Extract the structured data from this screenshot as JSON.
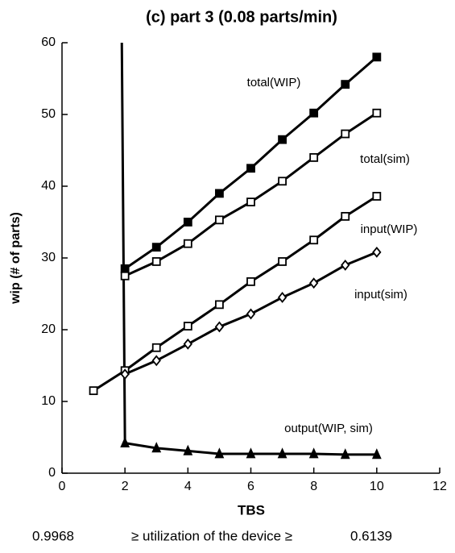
{
  "chart_data": {
    "type": "line",
    "title": "(c) part 3 (0.08 parts/min)",
    "x_label": "TBS",
    "y_label": "wip (# of parts)",
    "xlim": [
      0,
      12
    ],
    "xticks": [
      0,
      2,
      4,
      6,
      8,
      10,
      12
    ],
    "ylim": [
      0,
      60
    ],
    "yticks": [
      0,
      10,
      20,
      30,
      40,
      50,
      60
    ],
    "series": [
      {
        "name": "total(WIP)",
        "color": "#000000",
        "marker": "filled-square",
        "x": [
          2,
          3,
          4,
          5,
          6,
          7,
          8,
          9,
          10
        ],
        "values": [
          28.5,
          31.5,
          35,
          39,
          42.5,
          46.5,
          50.2,
          54.2,
          58
        ]
      },
      {
        "name": "total(sim)",
        "color": "#000000",
        "marker": "open-square",
        "x": [
          2,
          3,
          4,
          5,
          6,
          7,
          8,
          9,
          10
        ],
        "values": [
          27.5,
          29.5,
          32,
          35.3,
          37.8,
          40.7,
          44,
          47.3,
          50.2
        ]
      },
      {
        "name": "input(WIP)",
        "color": "#000000",
        "marker": "open-square",
        "x": [
          1,
          2,
          3,
          4,
          5,
          6,
          7,
          8,
          9,
          10
        ],
        "values": [
          11.5,
          14.3,
          17.5,
          20.5,
          23.5,
          26.7,
          29.5,
          32.5,
          35.8,
          38.6
        ]
      },
      {
        "name": "input(sim)",
        "color": "#000000",
        "marker": "open-diamond",
        "x": [
          2,
          3,
          4,
          5,
          6,
          7,
          8,
          9,
          10
        ],
        "values": [
          13.8,
          15.7,
          18,
          20.4,
          22.2,
          24.5,
          26.5,
          29,
          30.8
        ]
      },
      {
        "name": "output(WIP, sim)",
        "color": "#000000",
        "marker": "filled-triangle",
        "x": [
          1.9,
          2,
          3,
          4,
          5,
          6,
          7,
          8,
          9,
          10
        ],
        "values": [
          60,
          4.2,
          3.5,
          3.1,
          2.7,
          2.7,
          2.7,
          2.7,
          2.6,
          2.6
        ]
      }
    ],
    "footer": [
      "0.9968",
      "≥ utilization of  the device ≥",
      "0.6139"
    ]
  }
}
